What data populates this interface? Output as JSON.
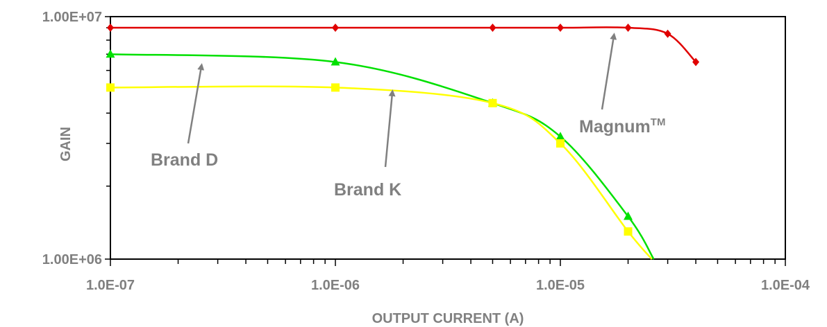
{
  "chart_data": {
    "type": "line",
    "xscale": "log",
    "yscale": "log",
    "xlabel": "OUTPUT CURRENT (A)",
    "ylabel": "GAIN",
    "xlim": [
      1e-07,
      0.0001
    ],
    "ylim": [
      1000000.0,
      10000000.0
    ],
    "x_tick_labels": [
      "1.0E-07",
      "1.0E-06",
      "1.0E-05",
      "1.0E-04"
    ],
    "x_tick_values": [
      1e-07,
      1e-06,
      1e-05,
      0.0001
    ],
    "y_tick_labels": [
      "1.00E+06",
      "1.00E+07"
    ],
    "y_tick_values": [
      1000000.0,
      10000000.0
    ],
    "grid": false,
    "series": [
      {
        "name": "Magnum™",
        "color": "#e00000",
        "marker": "diamond",
        "points": [
          [
            1e-07,
            9000000
          ],
          [
            1e-06,
            9000000
          ],
          [
            5e-06,
            9000000
          ],
          [
            1e-05,
            9000000
          ],
          [
            2e-05,
            9000000
          ],
          [
            3e-05,
            8500000
          ],
          [
            4e-05,
            6500000
          ]
        ]
      },
      {
        "name": "Brand D",
        "color": "#00e000",
        "marker": "triangle",
        "points": [
          [
            1e-07,
            7000000
          ],
          [
            1e-06,
            6500000
          ],
          [
            5e-06,
            4400000
          ],
          [
            1e-05,
            3200000
          ],
          [
            2e-05,
            1500000
          ],
          [
            2.6e-05,
            1000000
          ]
        ]
      },
      {
        "name": "Brand K",
        "color": "#ffff00",
        "marker": "square",
        "points": [
          [
            1e-07,
            5100000
          ],
          [
            1e-06,
            5100000
          ],
          [
            5e-06,
            4400000
          ],
          [
            1e-05,
            3000000
          ],
          [
            2e-05,
            1300000
          ],
          [
            2.55e-05,
            1000000
          ]
        ]
      }
    ],
    "annotations": [
      {
        "label": "Brand D",
        "series": "Brand D"
      },
      {
        "label": "Brand K",
        "series": "Brand K"
      },
      {
        "label": "Magnum",
        "superscript": "TM",
        "series": "Magnum™"
      }
    ],
    "annotation_color": "#808080"
  }
}
